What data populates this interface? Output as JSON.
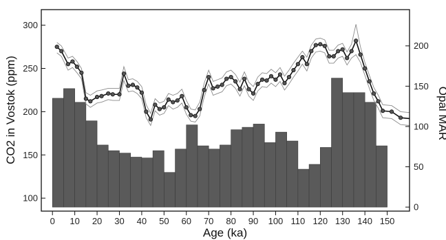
{
  "chart_data": {
    "type": "bar",
    "xlabel": "Age (ka)",
    "ylabel_left": "CO2 in Vostok (ppm)",
    "ylabel_right": "Opal MAR",
    "xlim": [
      -5,
      160
    ],
    "xticks": [
      0,
      10,
      20,
      30,
      40,
      50,
      60,
      70,
      80,
      90,
      100,
      110,
      120,
      130,
      140,
      150
    ],
    "ylim_left": [
      85,
      318
    ],
    "yticks_left": [
      100,
      150,
      200,
      250,
      300
    ],
    "ylim_right": [
      -5,
      245
    ],
    "yticks_right": [
      0,
      50,
      100,
      150,
      200
    ],
    "grid": false,
    "series": [
      {
        "kind": "bar",
        "axis": "right",
        "bar_width": 5,
        "color": "#5a5a5a",
        "x": [
          2.5,
          7.5,
          12.5,
          17.5,
          22.5,
          27.5,
          32.5,
          37.5,
          42.5,
          47.5,
          52.5,
          57.5,
          62.5,
          67.5,
          72.5,
          77.5,
          82.5,
          87.5,
          92.5,
          97.5,
          102.5,
          107.5,
          112.5,
          117.5,
          122.5,
          127.5,
          132.5,
          137.5,
          142.5,
          147.5
        ],
        "values": [
          135,
          147,
          130,
          107,
          77,
          70,
          67,
          62,
          61,
          70,
          43,
          72,
          102,
          76,
          72,
          77,
          96,
          99,
          103,
          80,
          93,
          82,
          47,
          53,
          74,
          160,
          142,
          142,
          130,
          76
        ]
      },
      {
        "kind": "line",
        "axis": "left",
        "color": "#111111",
        "marker": "circle",
        "x": [
          2,
          4,
          7,
          9,
          11,
          13,
          15,
          17,
          20,
          22,
          25,
          27,
          30,
          32,
          34,
          36,
          38,
          40,
          42,
          44,
          46,
          48,
          50,
          52,
          54,
          56,
          58,
          60,
          62,
          64,
          66,
          68,
          70,
          72,
          74,
          76,
          78,
          80,
          82,
          84,
          86,
          88,
          90,
          92,
          94,
          96,
          98,
          100,
          102,
          104,
          106,
          108,
          110,
          112,
          114,
          116,
          118,
          120,
          122,
          124,
          126,
          128,
          130,
          132,
          134,
          136,
          138,
          140,
          142,
          144,
          146,
          148,
          152,
          156,
          160
        ],
        "values": [
          275,
          270,
          255,
          258,
          252,
          245,
          215,
          212,
          217,
          218,
          221,
          220,
          220,
          244,
          230,
          231,
          228,
          222,
          200,
          191,
          208,
          203,
          205,
          214,
          211,
          213,
          218,
          205,
          196,
          195,
          203,
          225,
          240,
          227,
          229,
          231,
          238,
          240,
          235,
          226,
          238,
          226,
          221,
          232,
          237,
          236,
          241,
          237,
          243,
          233,
          240,
          248,
          255,
          263,
          255,
          270,
          277,
          278,
          276,
          264,
          264,
          270,
          272,
          262,
          270,
          282,
          266,
          250,
          235,
          221,
          212,
          201,
          200,
          193,
          192
        ],
        "band": {
          "upper": [
            280,
            276,
            262,
            264,
            258,
            250,
            222,
            219,
            224,
            225,
            227,
            227,
            227,
            252,
            237,
            238,
            235,
            229,
            208,
            198,
            215,
            210,
            212,
            221,
            219,
            221,
            226,
            213,
            203,
            202,
            211,
            233,
            248,
            235,
            237,
            239,
            246,
            248,
            243,
            234,
            246,
            234,
            229,
            240,
            245,
            244,
            249,
            245,
            251,
            241,
            248,
            256,
            263,
            270,
            263,
            277,
            284,
            285,
            283,
            271,
            271,
            277,
            279,
            269,
            278,
            301,
            275,
            257,
            242,
            228,
            219,
            208,
            207,
            200,
            199
          ],
          "lower": [
            268,
            264,
            248,
            251,
            245,
            238,
            209,
            205,
            210,
            211,
            214,
            213,
            213,
            236,
            223,
            224,
            221,
            215,
            193,
            184,
            201,
            196,
            198,
            207,
            203,
            205,
            210,
            197,
            189,
            188,
            195,
            217,
            232,
            219,
            221,
            223,
            230,
            232,
            227,
            218,
            230,
            218,
            213,
            224,
            229,
            228,
            233,
            229,
            235,
            225,
            232,
            240,
            247,
            255,
            247,
            262,
            269,
            270,
            268,
            256,
            256,
            262,
            264,
            254,
            262,
            266,
            257,
            242,
            227,
            213,
            204,
            193,
            192,
            185,
            184
          ]
        }
      }
    ]
  }
}
